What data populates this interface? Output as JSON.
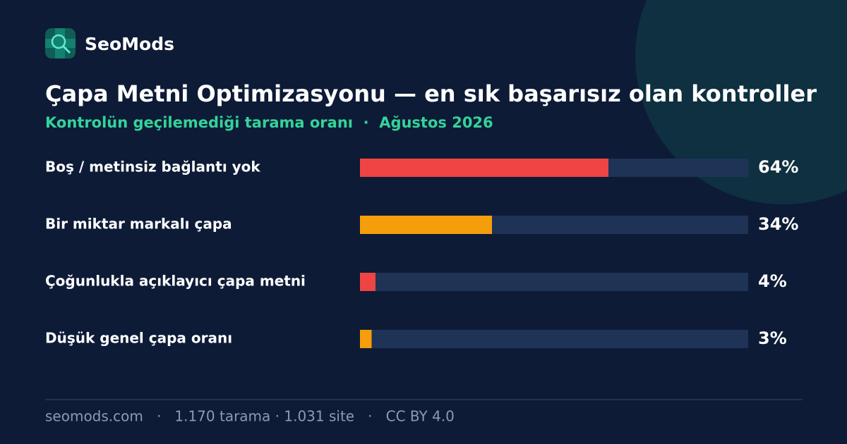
{
  "brand": "SeoMods",
  "chart_data": {
    "type": "bar",
    "orientation": "horizontal",
    "title": "Çapa Metni Optimizasyonu — en sık başarısız olan kontroller",
    "subtitle": "Kontrolün geçilemediği tarama oranı  ·  Ağustos 2026",
    "categories": [
      "Boş / metinsiz bağlantı yok",
      "Bir miktar markalı çapa",
      "Çoğunlukla açıklayıcı çapa metni",
      "Düşük genel çapa oranı"
    ],
    "values": [
      64,
      34,
      4,
      3
    ],
    "value_labels": [
      "64%",
      "34%",
      "4%",
      "3%"
    ],
    "colors": [
      "#ef4444",
      "#f59e0b",
      "#ef4444",
      "#f59e0b"
    ],
    "xlim": [
      0,
      100
    ]
  },
  "footer": "seomods.com   ·   1.170 tarama · 1.031 site   ·   CC BY 4.0"
}
